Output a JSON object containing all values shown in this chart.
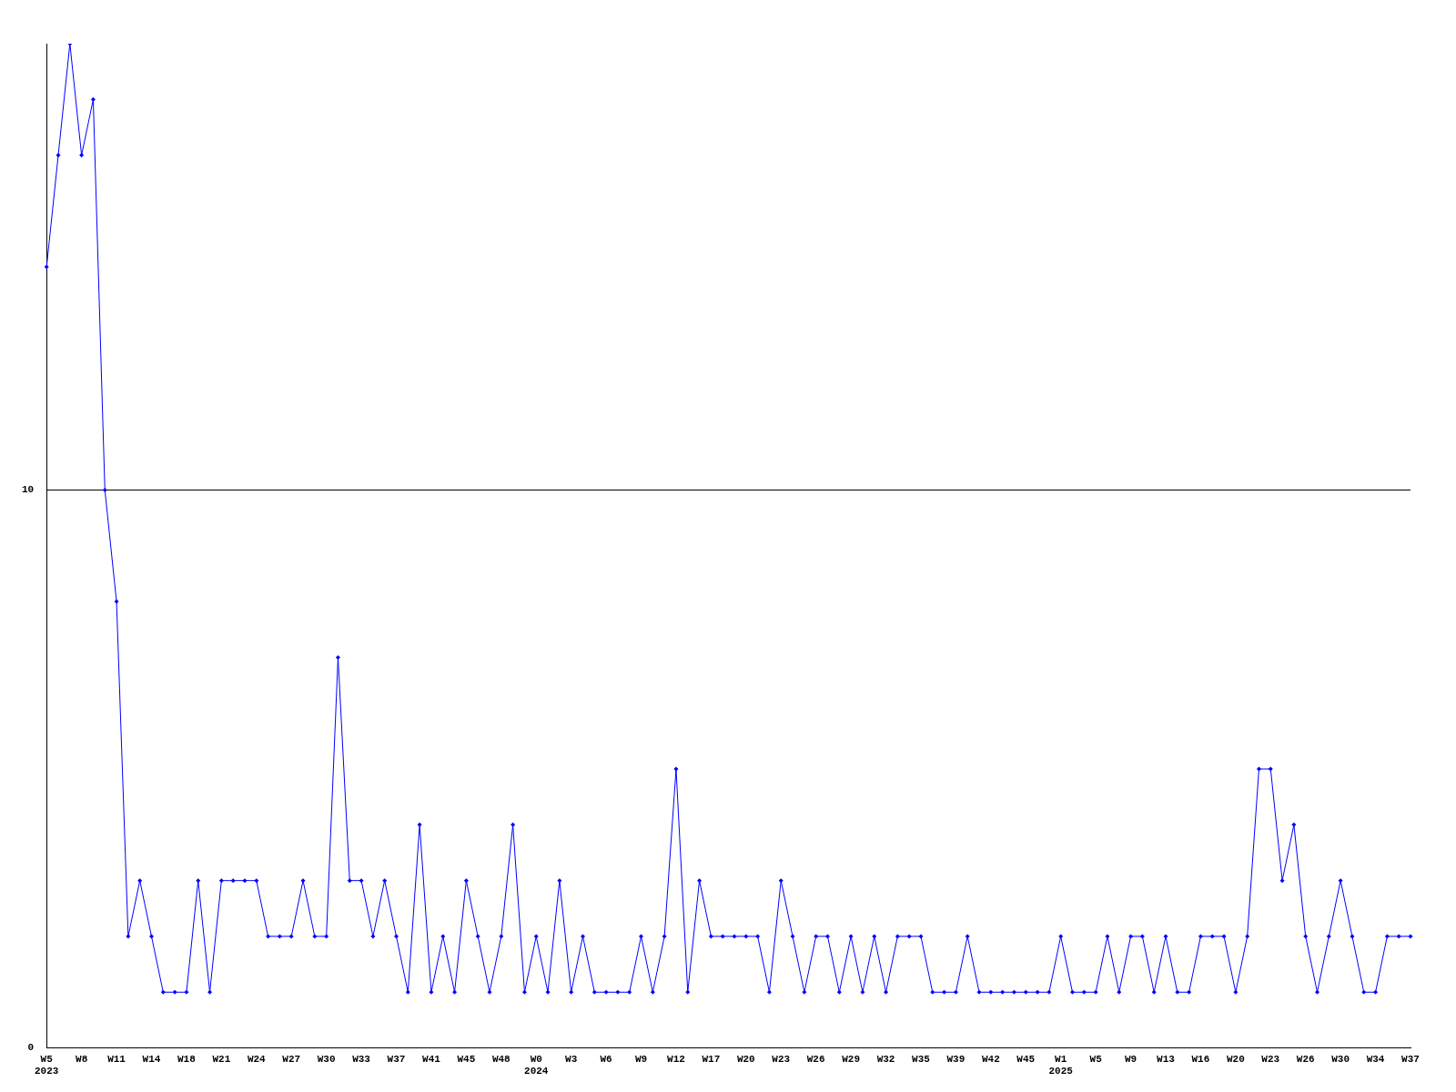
{
  "chart_data": {
    "type": "line",
    "categories": [
      "W5\n2023",
      null,
      null,
      "W8",
      null,
      null,
      "W11",
      null,
      null,
      "W14",
      null,
      null,
      "W18",
      null,
      null,
      "W21",
      null,
      null,
      "W24",
      null,
      null,
      "W27",
      null,
      null,
      "W30",
      null,
      null,
      "W33",
      null,
      null,
      "W37",
      null,
      null,
      "W41",
      null,
      null,
      "W45",
      null,
      null,
      "W48",
      null,
      null,
      "W0\n2024",
      null,
      null,
      "W3",
      null,
      null,
      "W6",
      null,
      null,
      "W9",
      null,
      null,
      "W12",
      null,
      null,
      "W17",
      null,
      null,
      "W20",
      null,
      null,
      "W23",
      null,
      null,
      "W26",
      null,
      null,
      "W29",
      null,
      null,
      "W32",
      null,
      null,
      "W35",
      null,
      null,
      "W39",
      null,
      null,
      "W42",
      null,
      null,
      "W45",
      null,
      null,
      "W1\n2025",
      null,
      null,
      "W5",
      null,
      null,
      "W9",
      null,
      null,
      "W13",
      null,
      null,
      "W16",
      null,
      null,
      "W20",
      null,
      null,
      "W23",
      null,
      null,
      "W26",
      null,
      null,
      "W30",
      null,
      null,
      "W34",
      null,
      null,
      "W37"
    ],
    "series": [
      {
        "color": "#0000ff",
        "values": [
          14,
          16,
          18,
          16,
          17,
          10,
          8,
          2,
          3,
          2,
          1,
          1,
          1,
          3,
          1,
          3,
          3,
          3,
          3,
          2,
          2,
          2,
          3,
          2,
          2,
          7,
          3,
          3,
          2,
          3,
          2,
          1,
          4,
          1,
          2,
          1,
          3,
          2,
          1,
          2,
          4,
          1,
          2,
          1,
          3,
          1,
          2,
          1,
          1,
          1,
          1,
          2,
          1,
          2,
          5,
          1,
          3,
          2,
          2,
          2,
          2,
          2,
          1,
          3,
          2,
          1,
          2,
          2,
          1,
          2,
          1,
          2,
          1,
          2,
          2,
          2,
          1,
          1,
          1,
          2,
          1,
          1,
          1,
          1,
          1,
          1,
          1,
          2,
          1,
          1,
          1,
          2,
          1,
          2,
          2,
          1,
          2,
          1,
          1,
          2,
          2,
          2,
          1,
          2,
          5,
          5,
          3,
          4,
          2,
          1,
          2,
          3,
          2,
          1,
          1,
          2,
          2,
          2
        ]
      }
    ],
    "ylim": [
      0,
      18
    ],
    "yticks": [
      0,
      10
    ],
    "grid": "y",
    "marker": "diamond",
    "line_style": "solid"
  }
}
